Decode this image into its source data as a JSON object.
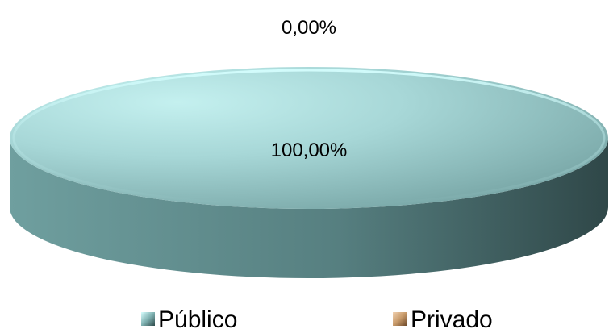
{
  "chart_data": {
    "type": "pie",
    "title": "",
    "categories": [
      "Público",
      "Privado"
    ],
    "values": [
      100.0,
      0.0
    ],
    "data_labels": [
      "100,00%",
      "0,00%"
    ],
    "colors": [
      "#a7d7d7",
      "#c89b6b"
    ],
    "legend_position": "bottom",
    "style": "3d"
  }
}
